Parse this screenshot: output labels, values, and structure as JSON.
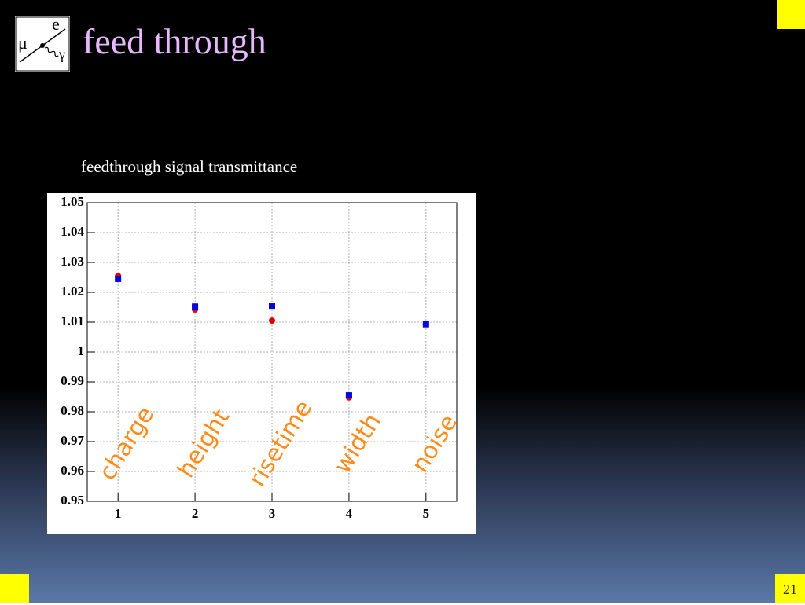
{
  "title": "feed through",
  "subtitle": "feedthrough signal transmittance",
  "page_number": "21",
  "logo": {
    "top": "e",
    "left": "μ",
    "right": "γ"
  },
  "chart_data": {
    "type": "scatter",
    "x": [
      1,
      2,
      3,
      4,
      5
    ],
    "series": [
      {
        "color": "#e00000",
        "marker": "circle",
        "values": [
          1.0255,
          1.0142,
          1.0105,
          0.9848,
          1.0093
        ]
      },
      {
        "color": "#0000e0",
        "marker": "square",
        "values": [
          1.0245,
          1.0152,
          1.0155,
          0.9855,
          1.0093
        ]
      }
    ],
    "annotations": [
      "charge",
      "height",
      "risetime",
      "width",
      "noise"
    ],
    "annotation_color": "#ff8c1a",
    "xlim": [
      0.6,
      5.4
    ],
    "ylim": [
      0.95,
      1.05
    ],
    "xticks": [
      1,
      2,
      3,
      4,
      5
    ],
    "yticks": [
      0.95,
      0.96,
      0.97,
      0.98,
      0.99,
      1,
      1.01,
      1.02,
      1.03,
      1.04,
      1.05
    ],
    "grid": true
  }
}
